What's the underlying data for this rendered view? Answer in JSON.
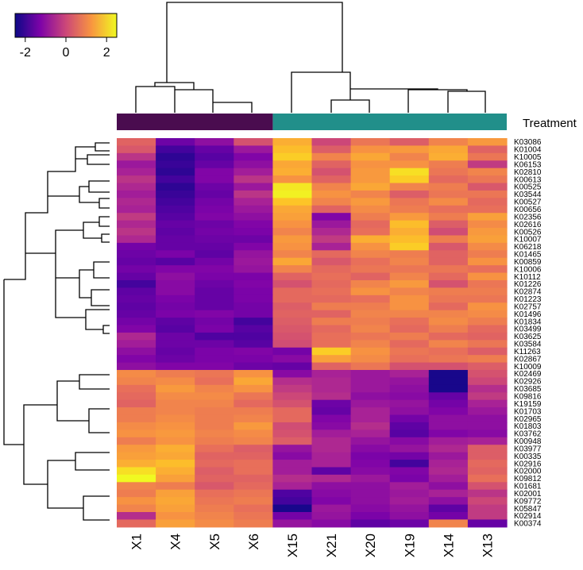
{
  "chart_data": {
    "type": "heatmap",
    "title": "",
    "columns": [
      "X1",
      "X4",
      "X5",
      "X6",
      "X15",
      "X21",
      "X20",
      "X19",
      "X14",
      "X13"
    ],
    "rows": [
      "K03086",
      "K01004",
      "K10005",
      "K06153",
      "K02810",
      "K00613",
      "K00525",
      "K03544",
      "K00527",
      "K00656",
      "K02356",
      "K02616",
      "K00526",
      "K10007",
      "K06218",
      "K01465",
      "K00859",
      "K10006",
      "K10112",
      "K01226",
      "K02874",
      "K01223",
      "K02757",
      "K01496",
      "K01834",
      "K03499",
      "K03625",
      "K03584",
      "K11263",
      "K02867",
      "K10009",
      "K02469",
      "K02926",
      "K03685",
      "K09816",
      "K19159",
      "K01703",
      "K02965",
      "K01803",
      "K03762",
      "K00948",
      "K03977",
      "K00335",
      "K02916",
      "K02000",
      "K09812",
      "K01681",
      "K02001",
      "K09772",
      "K05847",
      "K02914",
      "K00374"
    ],
    "values": [
      [
        0.5,
        -1.5,
        -1.0,
        0.2,
        1.6,
        0.0,
        0.8,
        0.4,
        1.0,
        1.3
      ],
      [
        0.3,
        -2.0,
        -1.6,
        -0.8,
        1.8,
        0.4,
        1.2,
        1.3,
        1.5,
        0.5
      ],
      [
        -0.3,
        -2.2,
        -1.8,
        -1.2,
        2.0,
        1.0,
        1.5,
        1.0,
        1.6,
        0.8
      ],
      [
        -0.8,
        -2.1,
        -1.6,
        -1.0,
        1.5,
        0.5,
        1.2,
        1.2,
        0.9,
        -0.2
      ],
      [
        -0.6,
        -2.2,
        -1.2,
        -0.7,
        1.6,
        0.2,
        1.3,
        2.2,
        0.8,
        1.0
      ],
      [
        -0.3,
        -2.0,
        -1.2,
        -0.3,
        1.2,
        0.5,
        1.3,
        2.0,
        0.6,
        0.8
      ],
      [
        -0.5,
        -2.2,
        -1.5,
        -0.8,
        2.3,
        1.0,
        1.5,
        1.0,
        0.9,
        0.3
      ],
      [
        -0.7,
        -2.1,
        -1.6,
        -0.3,
        2.4,
        1.2,
        1.0,
        0.4,
        0.8,
        0.8
      ],
      [
        -0.5,
        -2.0,
        -1.4,
        -0.6,
        1.9,
        1.0,
        1.3,
        0.8,
        1.1,
        0.6
      ],
      [
        -0.6,
        -1.9,
        -1.3,
        -0.8,
        1.5,
        0.5,
        1.1,
        0.9,
        0.7,
        0.7
      ],
      [
        -0.2,
        -1.8,
        -1.2,
        -1.0,
        1.4,
        -1.2,
        0.9,
        1.3,
        0.9,
        1.4
      ],
      [
        -0.5,
        -1.6,
        -1.5,
        -1.2,
        1.2,
        -0.8,
        0.6,
        1.8,
        0.4,
        1.1
      ],
      [
        -0.3,
        -1.7,
        -1.4,
        -1.3,
        1.0,
        -0.5,
        0.7,
        1.6,
        0.1,
        1.3
      ],
      [
        -0.5,
        -1.6,
        -1.5,
        -1.5,
        1.3,
        -0.2,
        1.6,
        1.8,
        0.9,
        1.4
      ],
      [
        -1.4,
        -1.6,
        -1.6,
        -1.2,
        1.2,
        -0.6,
        1.2,
        2.0,
        0.3,
        1.1
      ],
      [
        -1.5,
        -1.3,
        -1.7,
        -0.9,
        1.0,
        0.6,
        1.0,
        0.9,
        0.5,
        0.9
      ],
      [
        -1.6,
        -1.8,
        -1.4,
        -0.8,
        1.5,
        0.3,
        0.7,
        1.0,
        0.5,
        1.2
      ],
      [
        -1.4,
        -1.2,
        -1.2,
        -0.9,
        1.0,
        0.6,
        0.8,
        0.8,
        0.8,
        0.7
      ],
      [
        -1.6,
        -1.0,
        -1.3,
        -1.3,
        0.5,
        0.7,
        0.5,
        1.0,
        0.6,
        1.2
      ],
      [
        -2.0,
        -1.1,
        -1.5,
        -1.2,
        0.2,
        0.6,
        1.0,
        1.3,
        0.2,
        0.8
      ],
      [
        -1.7,
        -1.1,
        -1.6,
        -1.3,
        0.6,
        0.7,
        1.2,
        1.0,
        0.9,
        0.9
      ],
      [
        -1.6,
        -1.3,
        -1.6,
        -1.3,
        0.6,
        0.6,
        0.7,
        1.2,
        0.8,
        0.8
      ],
      [
        -1.7,
        -1.4,
        -1.6,
        -1.4,
        0.4,
        0.9,
        0.9,
        1.2,
        0.6,
        1.2
      ],
      [
        -1.6,
        -1.3,
        -1.2,
        -1.4,
        0.5,
        0.5,
        1.0,
        1.0,
        1.0,
        1.1
      ],
      [
        -1.4,
        -1.7,
        -1.4,
        -2.0,
        0.4,
        0.9,
        0.9,
        0.7,
        1.1,
        0.9
      ],
      [
        -1.2,
        -1.8,
        -1.3,
        -1.8,
        0.3,
        0.6,
        1.0,
        0.6,
        0.9,
        0.6
      ],
      [
        -0.5,
        -1.5,
        -1.9,
        -1.9,
        0.2,
        0.7,
        0.8,
        0.9,
        0.6,
        0.5
      ],
      [
        -0.7,
        -1.5,
        -1.5,
        -1.8,
        0.1,
        0.7,
        1.0,
        0.6,
        1.0,
        0.8
      ],
      [
        -1.0,
        -1.6,
        -1.3,
        -1.2,
        -1.4,
        2.0,
        1.2,
        0.8,
        0.7,
        0.4
      ],
      [
        -1.2,
        -1.5,
        -1.3,
        -1.3,
        -1.1,
        1.4,
        1.1,
        0.7,
        0.8,
        0.9
      ],
      [
        -1.0,
        -1.2,
        -1.2,
        -1.5,
        -1.6,
        0.5,
        0.8,
        0.2,
        0.2,
        0.4
      ],
      [
        1.1,
        0.9,
        0.8,
        1.2,
        -1.1,
        -0.6,
        -0.8,
        -0.6,
        -2.4,
        0.2
      ],
      [
        1.0,
        1.1,
        0.7,
        1.5,
        -0.4,
        -0.5,
        -0.8,
        -0.9,
        -2.4,
        0.0
      ],
      [
        0.7,
        1.3,
        1.0,
        1.2,
        -0.2,
        -0.5,
        -0.8,
        -1.0,
        -2.4,
        -0.4
      ],
      [
        0.6,
        1.1,
        1.1,
        0.8,
        0.0,
        -0.4,
        -1.0,
        -1.1,
        -1.6,
        -0.2
      ],
      [
        0.5,
        1.0,
        1.0,
        0.6,
        0.2,
        -1.5,
        -0.8,
        -0.9,
        -1.4,
        -0.6
      ],
      [
        0.9,
        1.0,
        0.9,
        0.9,
        0.6,
        -1.6,
        -0.6,
        -1.0,
        -1.2,
        -0.8
      ],
      [
        0.9,
        1.1,
        0.9,
        1.0,
        0.6,
        -1.2,
        -0.6,
        -1.4,
        -1.0,
        -1.0
      ],
      [
        1.1,
        1.2,
        0.9,
        1.3,
        0.1,
        -1.1,
        -0.4,
        -1.7,
        -1.0,
        -1.0
      ],
      [
        1.2,
        1.3,
        1.0,
        1.1,
        0.2,
        -0.7,
        -0.6,
        -1.8,
        -1.2,
        -1.1
      ],
      [
        0.9,
        1.2,
        0.9,
        1.0,
        0.4,
        -0.5,
        -0.9,
        -1.1,
        -0.7,
        -0.6
      ],
      [
        1.3,
        1.6,
        0.7,
        0.4,
        -0.9,
        -0.5,
        -1.1,
        -0.9,
        -0.5,
        0.4
      ],
      [
        1.4,
        1.5,
        0.5,
        0.5,
        -1.1,
        -0.6,
        -1.3,
        -1.4,
        -0.8,
        0.4
      ],
      [
        1.6,
        1.8,
        0.6,
        0.7,
        -0.7,
        -0.6,
        -1.2,
        -2.0,
        -0.6,
        0.6
      ],
      [
        2.2,
        1.6,
        0.4,
        0.7,
        -0.7,
        -1.7,
        -1.1,
        -1.2,
        -0.5,
        0.5
      ],
      [
        2.6,
        1.4,
        0.5,
        0.5,
        -0.4,
        -0.5,
        -0.8,
        -1.3,
        -0.7,
        0.7
      ],
      [
        1.0,
        0.9,
        0.3,
        0.6,
        -0.6,
        -1.0,
        -1.0,
        -0.7,
        -1.0,
        0.2
      ],
      [
        0.9,
        1.4,
        0.7,
        0.8,
        -1.9,
        -1.1,
        -1.0,
        -0.8,
        -0.6,
        -0.3
      ],
      [
        1.2,
        1.5,
        0.8,
        0.9,
        -2.0,
        -1.2,
        -1.0,
        -0.7,
        -1.0,
        0.0
      ],
      [
        1.0,
        1.4,
        0.9,
        0.7,
        -2.4,
        -0.8,
        -1.1,
        -0.9,
        -1.7,
        -0.2
      ],
      [
        -0.4,
        1.2,
        1.0,
        0.8,
        -1.4,
        -0.9,
        -1.3,
        -1.0,
        -1.4,
        -0.2
      ],
      [
        0.6,
        1.4,
        1.1,
        0.9,
        -0.9,
        -1.1,
        -1.7,
        -1.5,
        1.0,
        -1.6
      ]
    ],
    "color_scale": {
      "name": "plasma",
      "range": [
        -2.5,
        2.5
      ],
      "ticks": [
        -2,
        0,
        2
      ],
      "tick_labels": [
        "-2",
        "0",
        "2"
      ]
    },
    "annotation": {
      "label": "Treatment",
      "groups": [
        {
          "columns": [
            "X1",
            "X4",
            "X5",
            "X6"
          ],
          "color": "#4a0c4f"
        },
        {
          "columns": [
            "X15",
            "X21",
            "X20",
            "X19",
            "X14",
            "X13"
          ],
          "color": "#218f8a"
        }
      ]
    },
    "column_dendrogram": true,
    "row_dendrogram": true
  }
}
